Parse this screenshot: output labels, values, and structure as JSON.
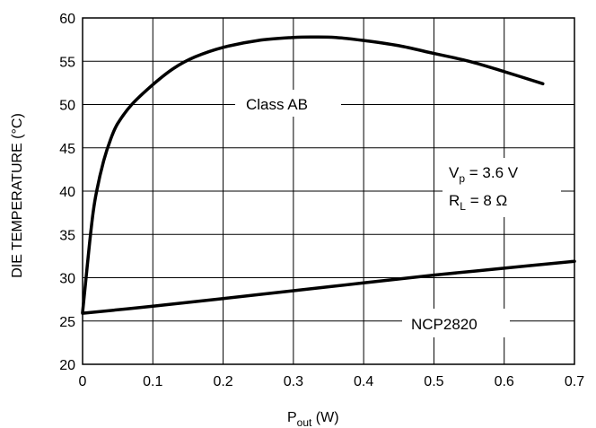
{
  "chart_data": {
    "type": "line",
    "xlabel": {
      "main": "P",
      "sub": "out",
      "unit": " (W)"
    },
    "ylabel": "DIE TEMPERATURE (°C)",
    "xlim": [
      0,
      0.7
    ],
    "ylim": [
      20,
      60
    ],
    "x_ticks": [
      "0",
      "0.1",
      "0.2",
      "0.3",
      "0.4",
      "0.5",
      "0.6",
      "0.7"
    ],
    "y_ticks": [
      "20",
      "25",
      "30",
      "35",
      "40",
      "45",
      "50",
      "55",
      "60"
    ],
    "grid": true,
    "series": [
      {
        "name": "Class AB",
        "color": "#000000",
        "x": [
          0,
          0.005,
          0.01,
          0.015,
          0.02,
          0.03,
          0.04,
          0.05,
          0.07,
          0.1,
          0.13,
          0.16,
          0.2,
          0.25,
          0.3,
          0.33,
          0.36,
          0.4,
          0.45,
          0.5,
          0.55,
          0.6,
          0.655
        ],
        "y": [
          26,
          30,
          34,
          37.5,
          40,
          43.5,
          46,
          47.8,
          50,
          52.3,
          54.2,
          55.5,
          56.6,
          57.4,
          57.75,
          57.8,
          57.75,
          57.4,
          56.8,
          55.9,
          55,
          53.8,
          52.4
        ]
      },
      {
        "name": "NCP2820",
        "color": "#000000",
        "x": [
          0,
          0.1,
          0.2,
          0.3,
          0.4,
          0.5,
          0.6,
          0.7
        ],
        "y": [
          25.9,
          26.7,
          27.6,
          28.5,
          29.4,
          30.3,
          31.1,
          31.9
        ]
      }
    ],
    "annotations": {
      "class_ab": "Class AB",
      "ncp2820": "NCP2820",
      "vp": {
        "main": "V",
        "sub": "p",
        "rest": " = 3.6 V"
      },
      "rl": {
        "main": "R",
        "sub": "L",
        "rest": " = 8 Ω"
      }
    }
  }
}
